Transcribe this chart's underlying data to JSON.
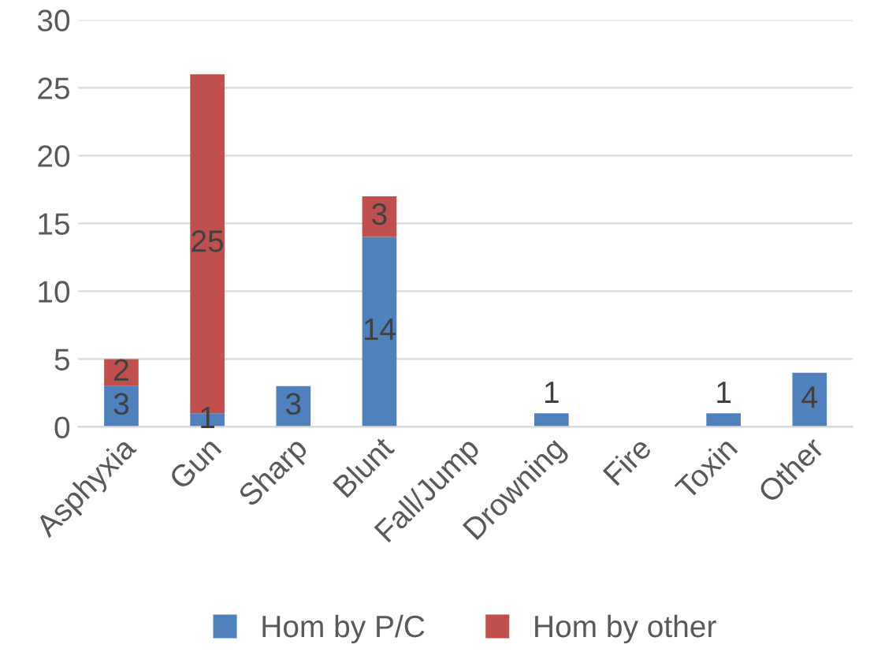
{
  "chart_data": {
    "type": "bar",
    "stacked": true,
    "categories": [
      "Asphyxia",
      "Gun",
      "Sharp",
      "Blunt",
      "Fall/Jump",
      "Drowning",
      "Fire",
      "Toxin",
      "Other"
    ],
    "series": [
      {
        "name": "Hom by P/C",
        "color": "#4f81bd",
        "values": [
          3,
          1,
          3,
          14,
          0,
          1,
          0,
          1,
          4
        ],
        "value_labels": [
          "3",
          "1",
          "3",
          "14",
          null,
          "1",
          null,
          "1",
          "4"
        ]
      },
      {
        "name": "Hom by other",
        "color": "#c0504d",
        "values": [
          2,
          25,
          0,
          3,
          0,
          0,
          0,
          0,
          0
        ],
        "value_labels": [
          "2",
          "25",
          null,
          "3",
          null,
          null,
          null,
          null,
          null
        ]
      }
    ],
    "ylim": [
      0,
      30
    ],
    "yticks": [
      0,
      5,
      10,
      15,
      20,
      25,
      30
    ],
    "grid": "y",
    "legend": "bottom"
  }
}
